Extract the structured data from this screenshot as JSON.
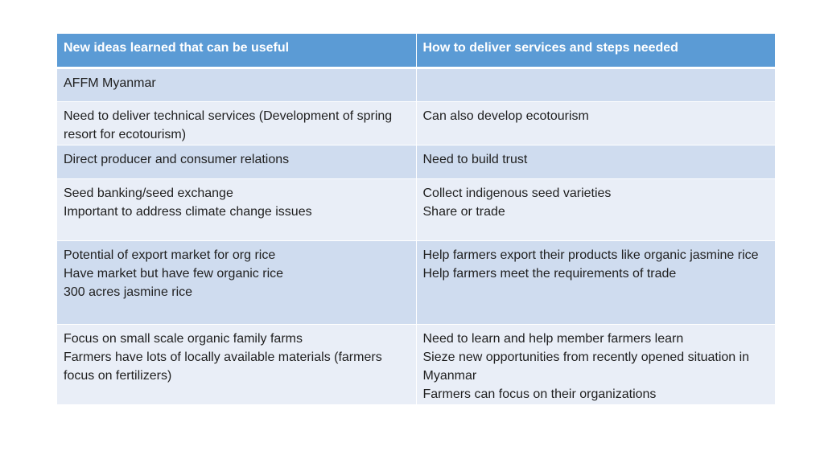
{
  "table": {
    "headers": [
      "New ideas learned that can be useful",
      "How to deliver services and steps needed"
    ],
    "rows": [
      {
        "left": [
          "AFFM Myanmar"
        ],
        "right": []
      },
      {
        "left": [
          "Need to deliver technical services (Development of spring resort for ecotourism)"
        ],
        "right": [
          "Can also develop ecotourism"
        ]
      },
      {
        "left": [
          "Direct producer and consumer relations"
        ],
        "right": [
          "Need to build trust"
        ]
      },
      {
        "left": [
          "Seed banking/seed exchange",
          "Important to address climate change issues"
        ],
        "right": [
          "Collect indigenous seed varieties",
          "Share or trade"
        ]
      },
      {
        "left": [
          "Potential of export market for org rice",
          "Have market but have few organic rice",
          "300 acres jasmine rice"
        ],
        "right": [
          "Help farmers export their products like organic jasmine rice",
          "Help farmers meet the requirements of trade"
        ]
      },
      {
        "left": [
          "Focus on small scale organic family farms",
          "Farmers have lots of locally available materials (farmers focus on fertilizers)"
        ],
        "right": [
          "Need to learn and help member farmers learn",
          "Sieze new opportunities from recently opened situation in Myanmar",
          "Farmers can focus on their organizations"
        ]
      }
    ],
    "colors": {
      "header": "#5b9bd5",
      "row_dark": "#cfdcef",
      "row_light": "#e9eef7"
    }
  }
}
